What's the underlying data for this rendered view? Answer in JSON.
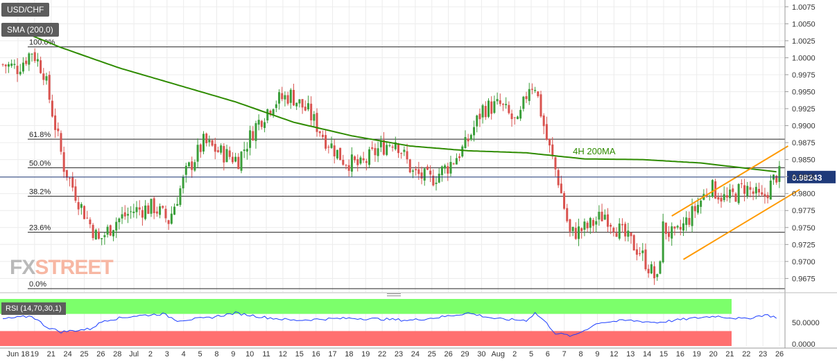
{
  "pair_label": "USD/CHF",
  "sma_label": "SMA (200,0)",
  "rsi_label": "RSI (14,70,30,1)",
  "logo": {
    "fx": "FX",
    "street": "STREET"
  },
  "colors": {
    "bull": "#3a9e3a",
    "bear": "#d9534f",
    "sma": "#2e8b00",
    "channel": "#ff9900",
    "rsi_line": "#1a3cff",
    "rsi_overbought": "#7cff6b",
    "rsi_oversold": "#ff7070"
  },
  "chart_data": [
    {
      "type": "candlestick",
      "title": "USD/CHF",
      "timeframe_label": "4H",
      "ylim": [
        0.9655,
        1.0085
      ],
      "y_ticks": [
        "1.0075",
        "1.0050",
        "1.0025",
        "1.0000",
        "0.9975",
        "0.9950",
        "0.9925",
        "0.9900",
        "0.9875",
        "0.9850",
        "0.9825",
        "0.9800",
        "0.9775",
        "0.9750",
        "0.9725",
        "0.9700",
        "0.9675"
      ],
      "last_price": "0.98243",
      "x_labels": [
        "Jun 18",
        "19",
        "21",
        "24",
        "25",
        "26",
        "28",
        "Jul",
        "2",
        "3",
        "4",
        "5",
        "8",
        "9",
        "10",
        "11",
        "12",
        "15",
        "16",
        "17",
        "18",
        "19",
        "22",
        "23",
        "24",
        "25",
        "26",
        "29",
        "30",
        "Aug",
        "2",
        "5",
        "6",
        "7",
        "8",
        "9",
        "12",
        "13",
        "14",
        "15",
        "16",
        "19",
        "20",
        "21",
        "22",
        "23",
        "26"
      ],
      "price_anchors": [
        [
          0,
          0.999
        ],
        [
          5,
          0.9985
        ],
        [
          10,
          1.001
        ],
        [
          14,
          0.998
        ],
        [
          21,
          0.984
        ],
        [
          27,
          0.978
        ],
        [
          33,
          0.973
        ],
        [
          39,
          0.976
        ],
        [
          45,
          0.9775
        ],
        [
          52,
          0.978
        ],
        [
          57,
          0.976
        ],
        [
          63,
          0.983
        ],
        [
          69,
          0.9875
        ],
        [
          75,
          0.986
        ],
        [
          81,
          0.985
        ],
        [
          87,
          0.99
        ],
        [
          93,
          0.9935
        ],
        [
          99,
          0.9945
        ],
        [
          105,
          0.992
        ],
        [
          111,
          0.988
        ],
        [
          117,
          0.985
        ],
        [
          123,
          0.984
        ],
        [
          129,
          0.9865
        ],
        [
          135,
          0.988
        ],
        [
          141,
          0.983
        ],
        [
          147,
          0.982
        ],
        [
          153,
          0.984
        ],
        [
          159,
          0.987
        ],
        [
          165,
          0.9925
        ],
        [
          171,
          0.993
        ],
        [
          177,
          0.99
        ],
        [
          181,
          0.996
        ],
        [
          183,
          0.996
        ],
        [
          187,
          0.988
        ],
        [
          191,
          0.982
        ],
        [
          195,
          0.974
        ],
        [
          201,
          0.975
        ],
        [
          207,
          0.977
        ],
        [
          213,
          0.974
        ],
        [
          219,
          0.9715
        ],
        [
          225,
          0.967
        ],
        [
          227,
          0.975
        ],
        [
          231,
          0.9735
        ],
        [
          237,
          0.977
        ],
        [
          243,
          0.981
        ],
        [
          249,
          0.979
        ],
        [
          255,
          0.981
        ],
        [
          261,
          0.979
        ],
        [
          266,
          0.9827
        ]
      ],
      "series": [
        {
          "name": "SMA (200,0)",
          "label_on_chart": "4H 200MA",
          "anchors": [
            [
              0,
              1.005
            ],
            [
              20,
              1.0015
            ],
            [
              40,
              0.9985
            ],
            [
              60,
              0.996
            ],
            [
              80,
              0.9935
            ],
            [
              100,
              0.9905
            ],
            [
              120,
              0.9885
            ],
            [
              140,
              0.987
            ],
            [
              160,
              0.9863
            ],
            [
              180,
              0.986
            ],
            [
              200,
              0.9851
            ],
            [
              220,
              0.985
            ],
            [
              240,
              0.9845
            ],
            [
              266,
              0.9832
            ]
          ]
        }
      ],
      "fibonacci": [
        {
          "label": "100.0%",
          "price": 1.0016
        },
        {
          "label": "61.8%",
          "price": 0.988
        },
        {
          "label": "50.0%",
          "price": 0.9838
        },
        {
          "label": "38.2%",
          "price": 0.9796
        },
        {
          "label": "23.6%",
          "price": 0.9743
        },
        {
          "label": "0.0%",
          "price": 0.966
        }
      ],
      "channel": {
        "upper": [
          [
            230,
            0.9767
          ],
          [
            270,
            0.987
          ]
        ],
        "lower": [
          [
            234,
            0.9703
          ],
          [
            274,
            0.9806
          ]
        ]
      }
    },
    {
      "type": "line",
      "title": "RSI (14,70,30,1)",
      "ylim": [
        0,
        100
      ],
      "y_ticks": [
        "50.0000",
        "0.0000"
      ],
      "overbought": 70,
      "oversold": 30,
      "anchors": [
        [
          0,
          58
        ],
        [
          10,
          65
        ],
        [
          15,
          40
        ],
        [
          20,
          28
        ],
        [
          30,
          35
        ],
        [
          35,
          55
        ],
        [
          45,
          65
        ],
        [
          55,
          70
        ],
        [
          60,
          55
        ],
        [
          70,
          60
        ],
        [
          80,
          72
        ],
        [
          90,
          62
        ],
        [
          100,
          55
        ],
        [
          110,
          58
        ],
        [
          120,
          60
        ],
        [
          130,
          58
        ],
        [
          140,
          55
        ],
        [
          150,
          62
        ],
        [
          160,
          72
        ],
        [
          170,
          58
        ],
        [
          180,
          55
        ],
        [
          183,
          72
        ],
        [
          186,
          55
        ],
        [
          190,
          25
        ],
        [
          196,
          18
        ],
        [
          205,
          50
        ],
        [
          215,
          55
        ],
        [
          225,
          50
        ],
        [
          235,
          58
        ],
        [
          245,
          65
        ],
        [
          255,
          58
        ],
        [
          262,
          68
        ],
        [
          266,
          62
        ]
      ]
    }
  ]
}
